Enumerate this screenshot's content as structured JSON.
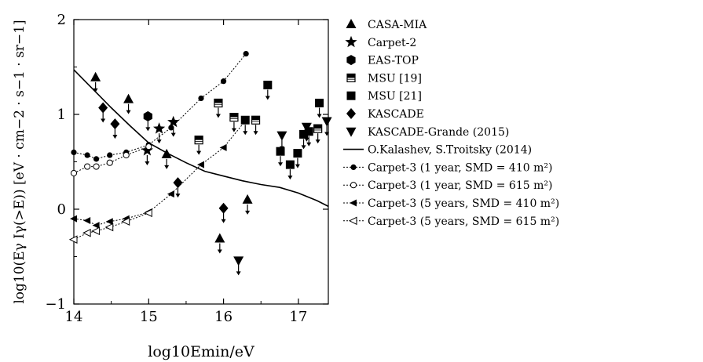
{
  "chart_data": {
    "type": "scatter",
    "title": "",
    "xlabel": "log10Emin/eV",
    "ylabel": "log10(Eγ Iγ(>E)) [eV · cm−2 · s−1 · sr−1]",
    "xlim": [
      14,
      17.4
    ],
    "ylim": [
      -1,
      2
    ],
    "xticks": [
      14,
      15,
      16,
      17
    ],
    "yticks": [
      -1,
      0,
      1,
      2
    ],
    "grid": false,
    "legend_position": "right, outside plot",
    "upper_limit_markers": true,
    "legend": [
      "CASA-MIA",
      "Carpet-2",
      "EAS-TOP",
      "MSU [19]",
      "MSU [21]",
      "KASCADE",
      "KASCADE-Grande (2015)",
      "O.Kalashev, S.Troitsky (2014)",
      "Carpet-3 (1 year, SMD = 410 m²)",
      "Carpet-3 (1 year, SMD = 615 m²)",
      "Carpet-3 (5 years, SMD = 410 m²)",
      "Carpet-3 (5 years, SMD = 615 m²)"
    ],
    "series": [
      {
        "name": "CASA-MIA",
        "marker": "triangle-up",
        "limit": true,
        "x": [
          14.29,
          14.73,
          15.24,
          15.95,
          16.32
        ],
        "y": [
          1.39,
          1.16,
          0.58,
          -0.31,
          0.1
        ]
      },
      {
        "name": "Carpet-2",
        "marker": "star",
        "limit": true,
        "x": [
          14.98,
          15.14,
          15.33
        ],
        "y": [
          0.62,
          0.85,
          0.92
        ]
      },
      {
        "name": "EAS-TOP",
        "marker": "hexagon",
        "limit": true,
        "x": [
          14.99
        ],
        "y": [
          0.98
        ]
      },
      {
        "name": "MSU [19]",
        "marker": "half-square",
        "limit": true,
        "x": [
          15.67,
          15.93,
          16.14,
          16.43,
          17.26
        ],
        "y": [
          0.73,
          1.12,
          0.97,
          0.94,
          0.85
        ]
      },
      {
        "name": "MSU [21]",
        "marker": "square",
        "limit": true,
        "x": [
          16.29,
          16.59,
          16.76,
          16.89,
          16.99,
          17.07,
          17.14,
          17.28
        ],
        "y": [
          0.94,
          1.31,
          0.61,
          0.47,
          0.59,
          0.79,
          0.82,
          1.12
        ]
      },
      {
        "name": "KASCADE",
        "marker": "diamond",
        "limit": true,
        "x": [
          14.39,
          14.55,
          15.39,
          16.0
        ],
        "y": [
          1.07,
          0.9,
          0.28,
          0.01
        ]
      },
      {
        "name": "KASCADE-Grande (2015)",
        "marker": "triangle-down",
        "limit": true,
        "x": [
          16.2,
          16.78,
          17.11,
          17.38
        ],
        "y": [
          -0.54,
          0.78,
          0.87,
          0.93
        ]
      },
      {
        "name": "O.Kalashev, S.Troitsky (2014)",
        "style": "solid-line",
        "x": [
          14.0,
          14.25,
          14.5,
          14.75,
          15.0,
          15.25,
          15.5,
          15.75,
          16.0,
          16.25,
          16.5,
          16.75,
          17.0,
          17.25,
          17.4
        ],
        "y": [
          1.47,
          1.27,
          1.07,
          0.88,
          0.7,
          0.59,
          0.49,
          0.4,
          0.35,
          0.3,
          0.26,
          0.23,
          0.17,
          0.09,
          0.03
        ]
      },
      {
        "name": "Carpet-3 (1 year, SMD = 410 m²)",
        "marker": "filled-circle",
        "style": "dotted-line",
        "x": [
          14.0,
          14.18,
          14.3,
          14.48,
          14.7,
          15.0,
          15.3,
          15.7,
          16.0,
          16.3
        ],
        "y": [
          0.6,
          0.57,
          0.53,
          0.57,
          0.6,
          0.68,
          0.86,
          1.17,
          1.35,
          1.64
        ]
      },
      {
        "name": "Carpet-3 (1 year, SMD = 615 m²)",
        "marker": "open-circle",
        "style": "dotted-line",
        "x": [
          14.0,
          14.18,
          14.3,
          14.48,
          14.7,
          15.0
        ],
        "y": [
          0.38,
          0.45,
          0.45,
          0.49,
          0.57,
          0.66
        ]
      },
      {
        "name": "Carpet-3 (5 years, SMD = 410 m²)",
        "marker": "filled-triangle-left",
        "style": "dotted-line",
        "x": [
          14.0,
          14.18,
          14.3,
          14.48,
          14.7,
          15.0,
          15.3,
          15.7,
          16.0,
          16.3
        ],
        "y": [
          -0.1,
          -0.12,
          -0.17,
          -0.13,
          -0.1,
          -0.03,
          0.16,
          0.47,
          0.65,
          0.94
        ]
      },
      {
        "name": "Carpet-3 (5 years, SMD = 615 m²)",
        "marker": "open-triangle-left",
        "style": "dotted-line",
        "x": [
          14.0,
          14.18,
          14.3,
          14.48,
          14.7,
          15.0
        ],
        "y": [
          -0.32,
          -0.25,
          -0.23,
          -0.19,
          -0.13,
          -0.04
        ]
      }
    ]
  }
}
